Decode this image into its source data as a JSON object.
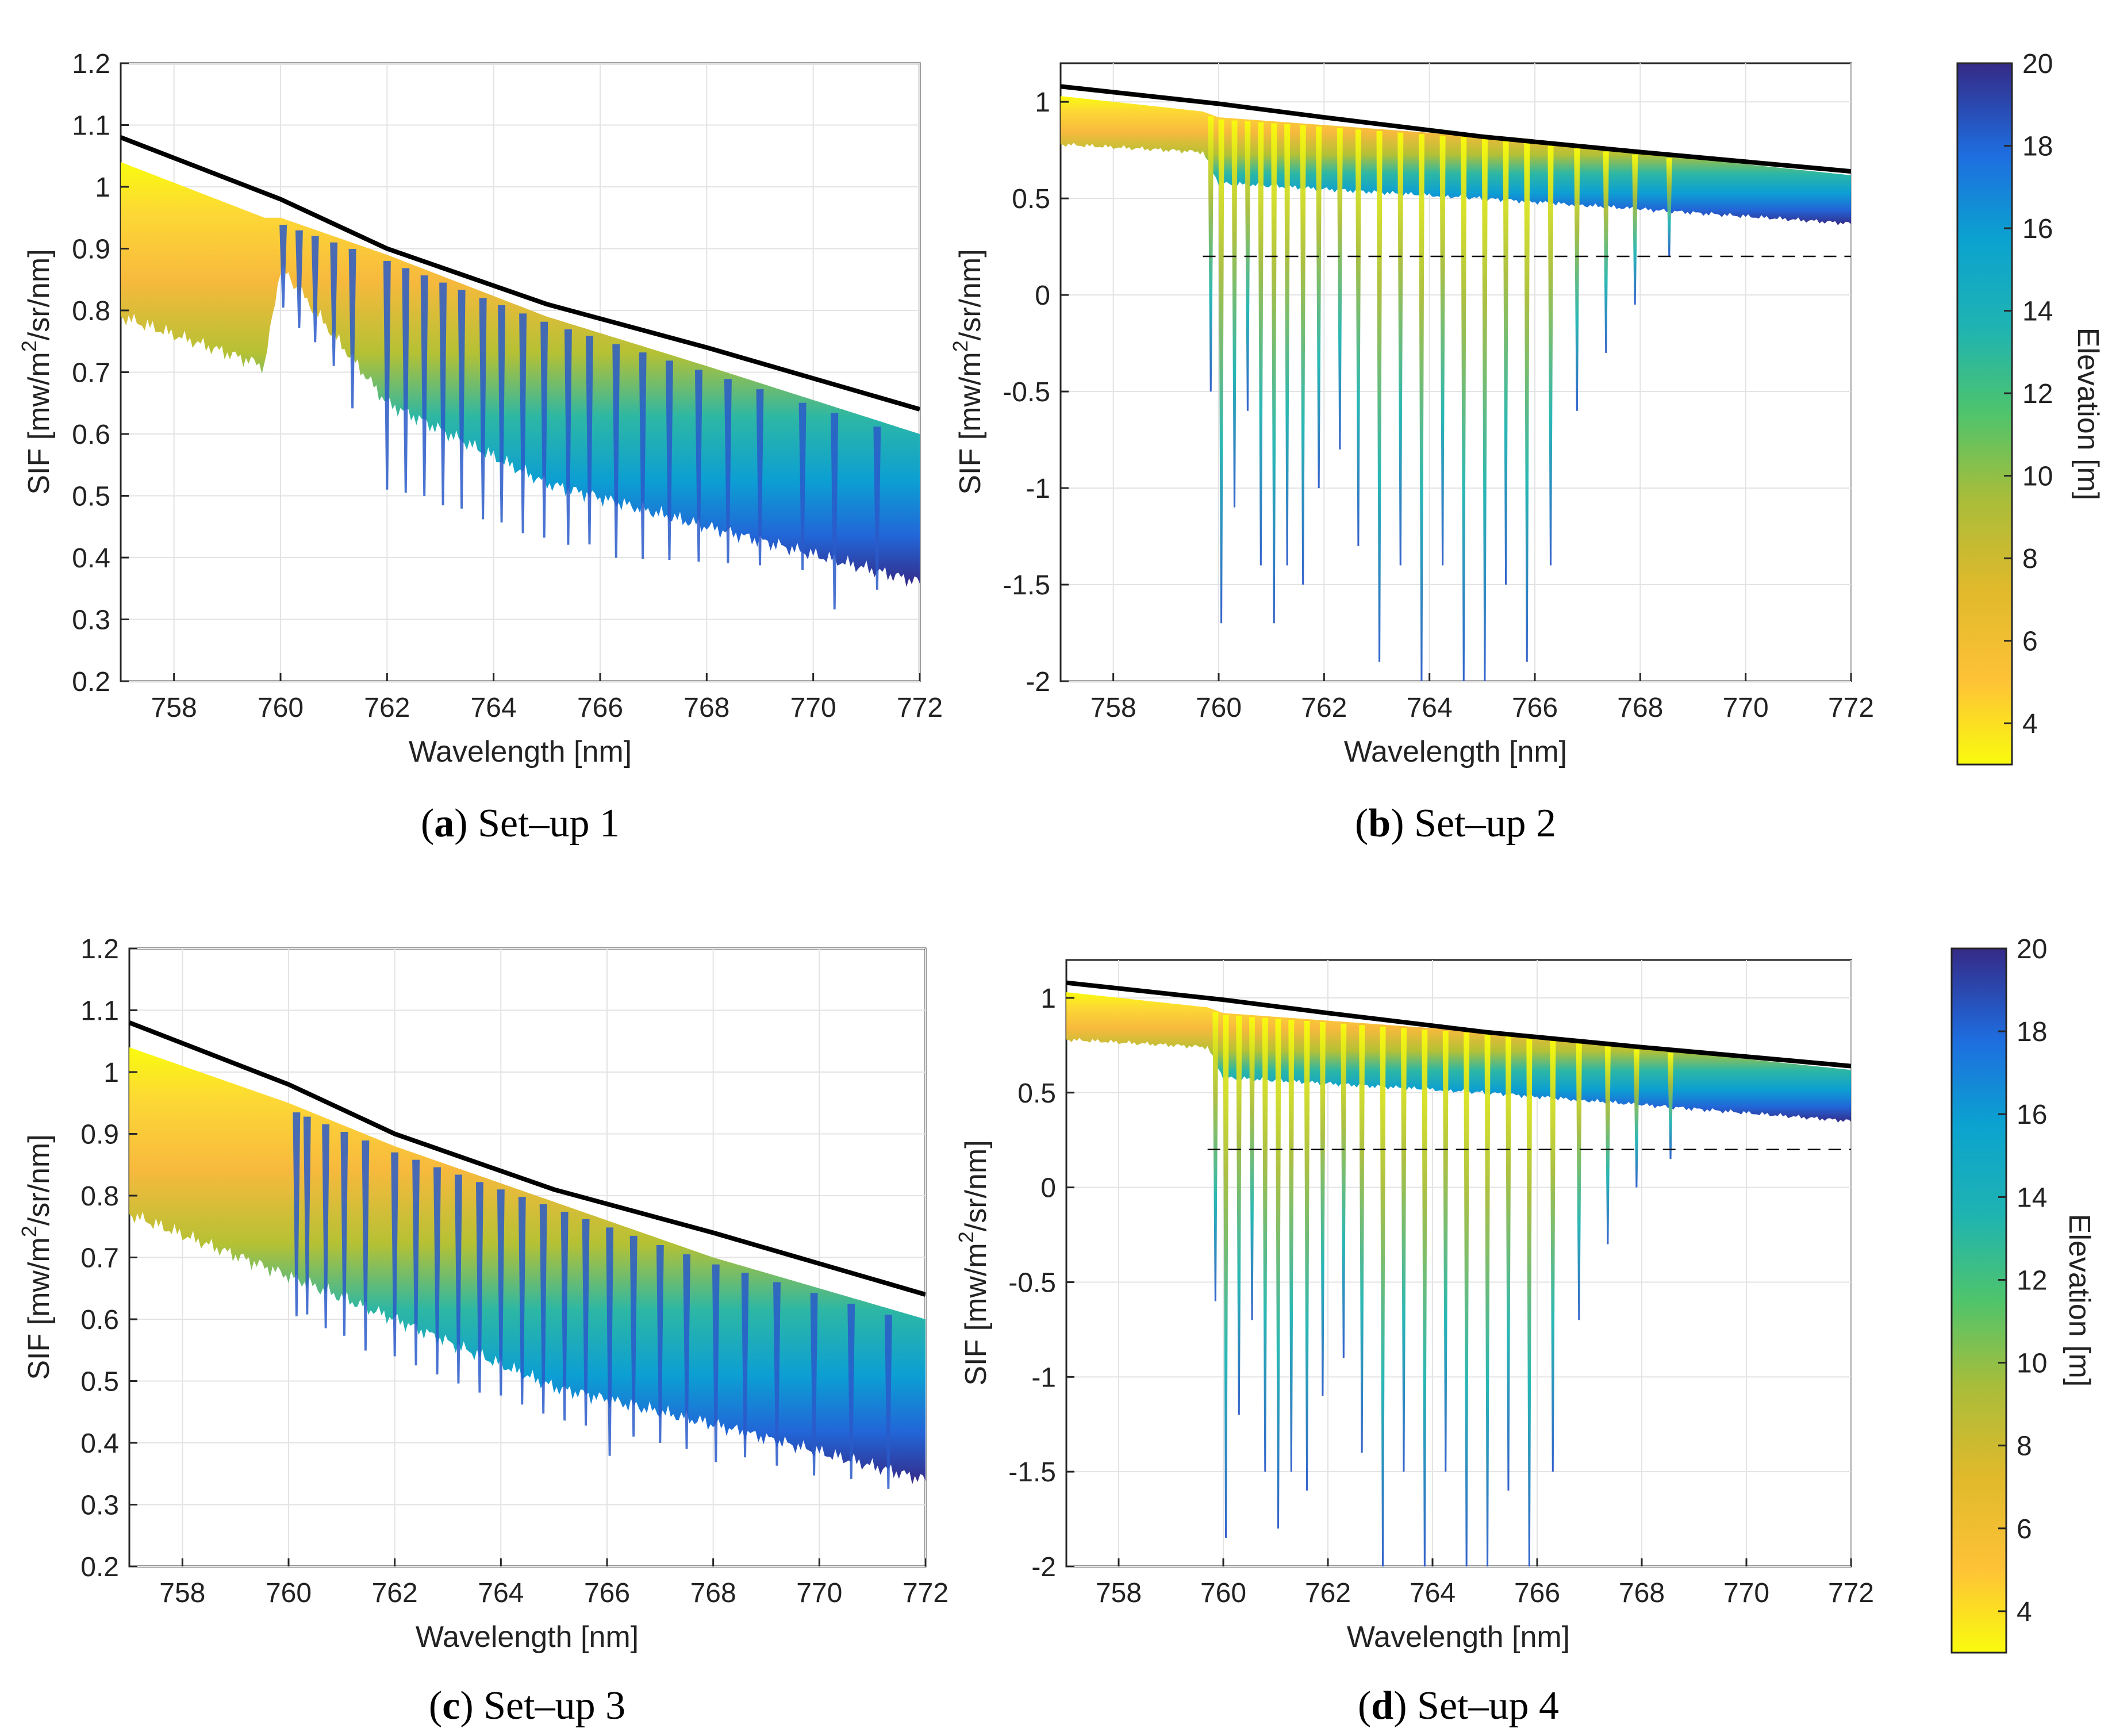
{
  "chart_data": [
    {
      "id": "a",
      "type": "area",
      "caption_letter": "a",
      "caption_text": " Set–up 1",
      "xlabel": "Wavelength [nm]",
      "ylabel": "SIF [mw/m",
      "ylabel_sup": "2",
      "ylabel_tail": "/sr/nm]",
      "xlim": [
        757,
        772
      ],
      "ylim": [
        0.2,
        1.2
      ],
      "xticks": [
        "758",
        "760",
        "762",
        "764",
        "766",
        "768",
        "770",
        "772"
      ],
      "yticks": [
        "0.2",
        "0.3",
        "0.4",
        "0.5",
        "0.6",
        "0.7",
        "0.8",
        "0.9",
        "1",
        "1.1",
        "1.2"
      ],
      "grid": true,
      "reference_line": {
        "x": [
          757,
          760,
          762,
          765,
          768,
          772
        ],
        "y": [
          1.08,
          0.98,
          0.9,
          0.81,
          0.74,
          0.64
        ]
      },
      "band_top": {
        "x": [
          757,
          759.7,
          760,
          762,
          765,
          768,
          772
        ],
        "y": [
          1.04,
          0.95,
          0.95,
          0.89,
          0.79,
          0.71,
          0.6
        ]
      },
      "band_bottom": {
        "x": [
          757,
          759.7,
          760,
          762,
          765,
          768,
          772
        ],
        "y": [
          0.79,
          0.71,
          0.87,
          0.65,
          0.52,
          0.45,
          0.36
        ]
      },
      "absorption_lines": {
        "x": [
          760.05,
          760.35,
          760.65,
          761.0,
          761.35,
          762.0,
          762.35,
          762.7,
          763.05,
          763.4,
          763.8,
          764.15,
          764.55,
          764.95,
          765.4,
          765.8,
          766.3,
          766.8,
          767.3,
          767.85,
          768.4,
          769.0,
          769.8,
          770.4,
          771.2
        ],
        "depth": [
          0.06,
          0.06,
          0.05,
          0.05,
          0.08,
          0.14,
          0.13,
          0.12,
          0.12,
          0.11,
          0.11,
          0.1,
          0.1,
          0.09,
          0.09,
          0.08,
          0.09,
          0.08,
          0.07,
          0.06,
          0.05,
          0.04,
          0.03,
          0.08,
          0.03
        ]
      },
      "dashed_threshold": null
    },
    {
      "id": "b",
      "type": "area",
      "caption_letter": "b",
      "caption_text": " Set–up 2",
      "xlabel": "Wavelength [nm]",
      "ylabel": "SIF [mw/m",
      "ylabel_sup": "2",
      "ylabel_tail": "/sr/nm]",
      "xlim": [
        757,
        772
      ],
      "ylim": [
        -2,
        1.2
      ],
      "xticks": [
        "758",
        "760",
        "762",
        "764",
        "766",
        "768",
        "770",
        "772"
      ],
      "yticks": [
        "-2",
        "-1.5",
        "-1",
        "-0.5",
        "0",
        "0.5",
        "1"
      ],
      "grid": true,
      "reference_line": {
        "x": [
          757,
          760,
          762,
          765,
          768,
          772
        ],
        "y": [
          1.08,
          0.99,
          0.92,
          0.82,
          0.74,
          0.64
        ]
      },
      "band_top": {
        "x": [
          757,
          759.7,
          760,
          765,
          772
        ],
        "y": [
          1.03,
          0.95,
          0.92,
          0.82,
          0.62
        ]
      },
      "band_bottom": {
        "x": [
          757,
          759.7,
          760,
          765,
          772
        ],
        "y": [
          0.78,
          0.74,
          0.58,
          0.5,
          0.37
        ]
      },
      "absorption_lines": {
        "x": [
          759.85,
          760.05,
          760.3,
          760.55,
          760.8,
          761.05,
          761.3,
          761.6,
          761.9,
          762.3,
          762.65,
          763.05,
          763.45,
          763.85,
          764.25,
          764.65,
          765.05,
          765.45,
          765.85,
          766.3,
          766.8,
          767.35,
          767.9,
          768.55
        ],
        "depth": [
          -0.5,
          -1.7,
          -1.1,
          -0.6,
          -1.4,
          -1.7,
          -1.4,
          -1.5,
          -1.0,
          -0.8,
          -1.3,
          -1.9,
          -1.4,
          -2.0,
          -1.4,
          -2.0,
          -2.0,
          -1.5,
          -1.9,
          -1.4,
          -0.6,
          -0.3,
          -0.05,
          0.2
        ]
      },
      "dashed_threshold": 0.2
    },
    {
      "id": "c",
      "type": "area",
      "caption_letter": "c",
      "caption_text": " Set–up 3",
      "xlabel": "Wavelength [nm]",
      "ylabel": "SIF [mw/m",
      "ylabel_sup": "2",
      "ylabel_tail": "/sr/nm]",
      "xlim": [
        757,
        772
      ],
      "ylim": [
        0.2,
        1.2
      ],
      "xticks": [
        "758",
        "760",
        "762",
        "764",
        "766",
        "768",
        "770",
        "772"
      ],
      "yticks": [
        "0.2",
        "0.3",
        "0.4",
        "0.5",
        "0.6",
        "0.7",
        "0.8",
        "0.9",
        "1",
        "1.1",
        "1.2"
      ],
      "grid": true,
      "reference_line": {
        "x": [
          757,
          760,
          762,
          765,
          768,
          772
        ],
        "y": [
          1.08,
          0.98,
          0.9,
          0.81,
          0.74,
          0.64
        ]
      },
      "band_top": {
        "x": [
          757,
          760,
          762,
          765,
          768,
          772
        ],
        "y": [
          1.04,
          0.95,
          0.88,
          0.79,
          0.7,
          0.6
        ]
      },
      "band_bottom": {
        "x": [
          757,
          760,
          762,
          765,
          768,
          772
        ],
        "y": [
          0.77,
          0.67,
          0.6,
          0.49,
          0.43,
          0.34
        ]
      },
      "absorption_lines": {
        "x": [
          760.15,
          760.35,
          760.7,
          761.05,
          761.45,
          762.0,
          762.4,
          762.8,
          763.2,
          763.6,
          764.0,
          764.4,
          764.8,
          765.2,
          765.6,
          766.05,
          766.5,
          767.0,
          767.5,
          768.05,
          768.6,
          769.2,
          769.9,
          770.6,
          771.3
        ],
        "depth": [
          0.06,
          0.05,
          0.06,
          0.06,
          0.07,
          0.06,
          0.06,
          0.06,
          0.06,
          0.06,
          0.05,
          0.05,
          0.05,
          0.05,
          0.05,
          0.09,
          0.05,
          0.05,
          0.05,
          0.06,
          0.04,
          0.04,
          0.04,
          0.03,
          0.03
        ]
      },
      "dashed_threshold": null
    },
    {
      "id": "d",
      "type": "area",
      "caption_letter": "d",
      "caption_text": " Set–up 4",
      "xlabel": "Wavelength [nm]",
      "ylabel": "SIF [mw/m",
      "ylabel_sup": "2",
      "ylabel_tail": "/sr/nm]",
      "xlim": [
        757,
        772
      ],
      "ylim": [
        -2,
        1.2
      ],
      "xticks": [
        "758",
        "760",
        "762",
        "764",
        "766",
        "768",
        "770",
        "772"
      ],
      "yticks": [
        "-2",
        "-1.5",
        "-1",
        "-0.5",
        "0",
        "0.5",
        "1"
      ],
      "grid": true,
      "reference_line": {
        "x": [
          757,
          760,
          762,
          765,
          768,
          772
        ],
        "y": [
          1.08,
          0.99,
          0.92,
          0.82,
          0.74,
          0.64
        ]
      },
      "band_top": {
        "x": [
          757,
          759.7,
          760,
          765,
          772
        ],
        "y": [
          1.03,
          0.95,
          0.92,
          0.82,
          0.62
        ]
      },
      "band_bottom": {
        "x": [
          757,
          759.7,
          760,
          765,
          772
        ],
        "y": [
          0.78,
          0.74,
          0.58,
          0.5,
          0.35
        ]
      },
      "absorption_lines": {
        "x": [
          759.85,
          760.05,
          760.3,
          760.55,
          760.8,
          761.05,
          761.3,
          761.6,
          761.9,
          762.3,
          762.65,
          763.05,
          763.45,
          763.85,
          764.25,
          764.65,
          765.05,
          765.45,
          765.85,
          766.3,
          766.8,
          767.35,
          767.9,
          768.55
        ],
        "depth": [
          -0.6,
          -1.85,
          -1.2,
          -0.7,
          -1.5,
          -1.8,
          -1.5,
          -1.6,
          -1.1,
          -0.9,
          -1.4,
          -2.0,
          -1.5,
          -2.0,
          -1.5,
          -2.0,
          -2.0,
          -1.6,
          -2.0,
          -1.5,
          -0.7,
          -0.3,
          0.0,
          0.15
        ]
      },
      "dashed_threshold": 0.2
    }
  ],
  "colorbars": [
    {
      "id": "top",
      "label": "Elevation [m]",
      "range": [
        3,
        20
      ],
      "ticks": [
        "4",
        "6",
        "8",
        "10",
        "12",
        "14",
        "16",
        "18",
        "20"
      ]
    },
    {
      "id": "bottom",
      "label": "Elevation [m]",
      "range": [
        3,
        20
      ],
      "ticks": [
        "4",
        "6",
        "8",
        "10",
        "12",
        "14",
        "16",
        "18",
        "20"
      ]
    }
  ],
  "colors": {
    "parula_stops": [
      "#f9fb0e",
      "#fec237",
      "#d4bb21",
      "#a8bd3a",
      "#5ec962",
      "#1fb4b1",
      "#0ba2d0",
      "#1e83de",
      "#2a5ac9",
      "#352a87"
    ],
    "reference_line": "#000000",
    "grid": "#e3e3e3",
    "axis": "#262626"
  }
}
